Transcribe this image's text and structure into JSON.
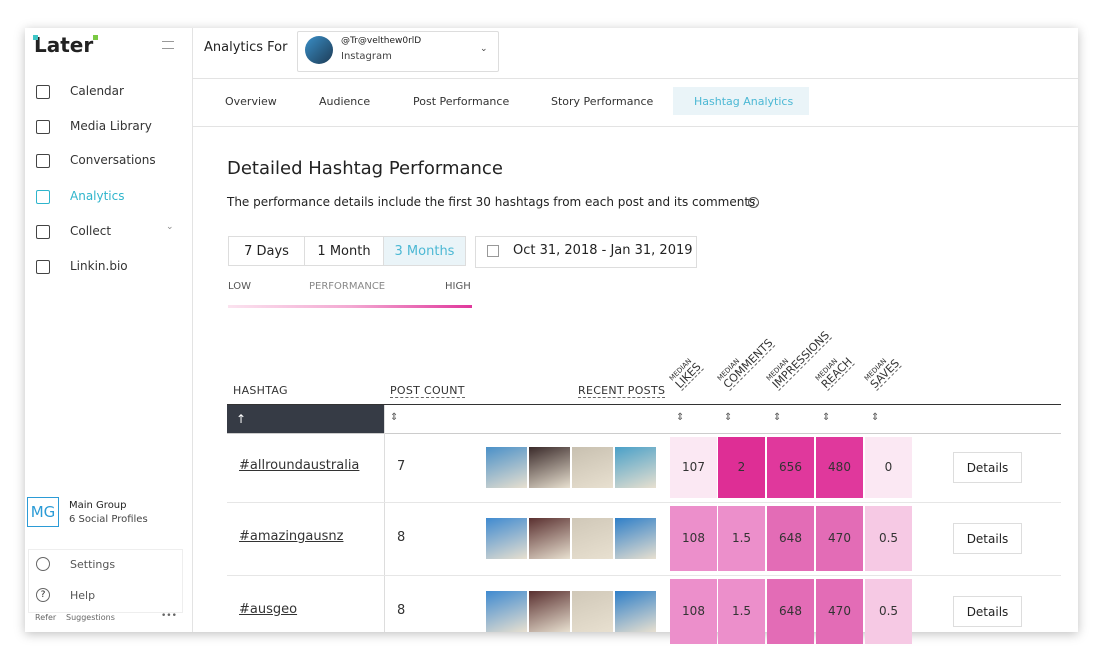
{
  "app": {
    "logo": "Later",
    "nav": [
      "Calendar",
      "Media Library",
      "Conversations",
      "Analytics",
      "Collect",
      "Linkin.bio"
    ],
    "active_nav": 3,
    "group": {
      "badge": "MG",
      "name": "Main Group",
      "profiles": "6 Social Profiles"
    },
    "footer_nav": [
      "Settings",
      "Help"
    ],
    "footer_links": [
      "Refer",
      "Suggestions"
    ]
  },
  "header": {
    "label": "Analytics For",
    "account": "@Tr@velthew0rlD",
    "platform": "Instagram"
  },
  "tabs": [
    "Overview",
    "Audience",
    "Post Performance",
    "Story Performance",
    "Hashtag Analytics"
  ],
  "active_tab": 4,
  "section": {
    "title": "Detailed Hashtag Performance",
    "description": "The performance details include the first 30 hashtags from each post and its comments.",
    "ranges": [
      "7 Days",
      "1 Month",
      "3 Months"
    ],
    "active_range": 2,
    "date_range": "Oct 31, 2018 - Jan 31, 2019",
    "legend": [
      "LOW",
      "PERFORMANCE",
      "HIGH"
    ]
  },
  "table": {
    "columns": [
      "HASHTAG",
      "POST COUNT",
      "RECENT POSTS"
    ],
    "metric_prefix": "MEDIAN",
    "metrics": [
      "LIKES",
      "COMMENTS",
      "IMPRESSIONS",
      "REACH",
      "SAVES"
    ],
    "action": "Details",
    "rows": [
      {
        "hashtag": "#allroundaustralia",
        "post_count": 7,
        "values": [
          107,
          2,
          656,
          480,
          0
        ],
        "colors": [
          "#fbe8f3",
          "#de2e95",
          "#e0389c",
          "#e0389c",
          "#fbe8f3"
        ]
      },
      {
        "hashtag": "#amazingausnz",
        "post_count": 8,
        "values": [
          108,
          1.5,
          648,
          470,
          0.5
        ],
        "colors": [
          "#ec8fcb",
          "#ec8fcb",
          "#e36cb6",
          "#e36cb6",
          "#f6c9e4"
        ]
      },
      {
        "hashtag": "#ausgeo",
        "post_count": 8,
        "values": [
          108,
          1.5,
          648,
          470,
          0.5
        ],
        "colors": [
          "#ec8fcb",
          "#ec8fcb",
          "#e36cb6",
          "#e36cb6",
          "#f6c9e4"
        ]
      }
    ]
  }
}
